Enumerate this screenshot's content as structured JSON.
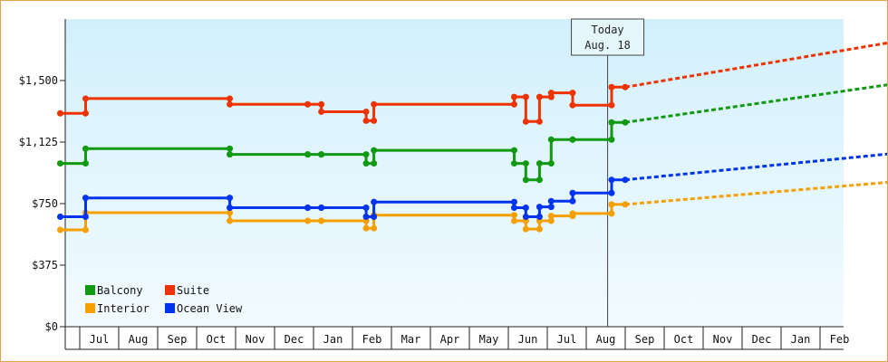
{
  "chart_data": {
    "type": "line",
    "title": "",
    "xlabel": "",
    "ylabel": "",
    "ylim": [
      0,
      1875
    ],
    "y_ticks": [
      "$0",
      "$375",
      "$750",
      "$1,125",
      "$1,500"
    ],
    "x_months": [
      "Jul",
      "Aug",
      "Sep",
      "Oct",
      "Nov",
      "Dec",
      "Jan",
      "Feb",
      "Mar",
      "Apr",
      "May",
      "Jun",
      "Jul",
      "Aug",
      "Sep",
      "Oct",
      "Nov",
      "Dec",
      "Jan",
      "Feb"
    ],
    "today": {
      "line1": "Today",
      "line2": "Aug. 18"
    },
    "legend_position": "bottom-left",
    "grid": false,
    "background_gradient": [
      "#d2f0fc",
      "#f2fbff"
    ],
    "series": [
      {
        "name": "Balcony",
        "color": "#119911",
        "points": [
          [
            -0.5,
            995
          ],
          [
            0.15,
            995
          ],
          [
            0.15,
            1085
          ],
          [
            3.85,
            1085
          ],
          [
            3.85,
            1050
          ],
          [
            5.85,
            1050
          ],
          [
            5.85,
            1050
          ],
          [
            6.2,
            1050
          ],
          [
            6.2,
            1050
          ],
          [
            7.35,
            1050
          ],
          [
            7.35,
            995
          ],
          [
            7.55,
            995
          ],
          [
            7.55,
            1075
          ],
          [
            11.15,
            1075
          ],
          [
            11.15,
            995
          ],
          [
            11.45,
            995
          ],
          [
            11.45,
            895
          ],
          [
            11.8,
            895
          ],
          [
            11.8,
            995
          ],
          [
            12.1,
            995
          ],
          [
            12.1,
            1140
          ],
          [
            12.65,
            1140
          ],
          [
            12.65,
            1140
          ],
          [
            13.65,
            1140
          ],
          [
            13.65,
            1245
          ],
          [
            14.0,
            1245
          ]
        ],
        "forecast": [
          [
            14.0,
            1245
          ],
          [
            21.5,
            1500
          ]
        ]
      },
      {
        "name": "Suite",
        "color": "#ee3300",
        "points": [
          [
            -0.5,
            1300
          ],
          [
            0.15,
            1300
          ],
          [
            0.15,
            1390
          ],
          [
            3.85,
            1390
          ],
          [
            3.85,
            1355
          ],
          [
            5.85,
            1355
          ],
          [
            5.85,
            1355
          ],
          [
            6.2,
            1355
          ],
          [
            6.2,
            1310
          ],
          [
            7.35,
            1310
          ],
          [
            7.35,
            1255
          ],
          [
            7.55,
            1255
          ],
          [
            7.55,
            1355
          ],
          [
            11.15,
            1355
          ],
          [
            11.15,
            1400
          ],
          [
            11.45,
            1400
          ],
          [
            11.45,
            1250
          ],
          [
            11.8,
            1250
          ],
          [
            11.8,
            1400
          ],
          [
            12.1,
            1400
          ],
          [
            12.1,
            1425
          ],
          [
            12.65,
            1425
          ],
          [
            12.65,
            1350
          ],
          [
            13.65,
            1350
          ],
          [
            13.65,
            1460
          ],
          [
            14.0,
            1460
          ]
        ],
        "forecast": [
          [
            14.0,
            1460
          ],
          [
            21.5,
            1760
          ]
        ]
      },
      {
        "name": "Interior",
        "color": "#f5a000",
        "points": [
          [
            -0.5,
            590
          ],
          [
            0.15,
            590
          ],
          [
            0.15,
            695
          ],
          [
            3.85,
            695
          ],
          [
            3.85,
            645
          ],
          [
            5.85,
            645
          ],
          [
            5.85,
            645
          ],
          [
            6.2,
            645
          ],
          [
            6.2,
            645
          ],
          [
            7.35,
            645
          ],
          [
            7.35,
            600
          ],
          [
            7.55,
            600
          ],
          [
            7.55,
            680
          ],
          [
            11.15,
            680
          ],
          [
            11.15,
            645
          ],
          [
            11.45,
            645
          ],
          [
            11.45,
            595
          ],
          [
            11.8,
            595
          ],
          [
            11.8,
            645
          ],
          [
            12.1,
            645
          ],
          [
            12.1,
            675
          ],
          [
            12.65,
            675
          ],
          [
            12.65,
            690
          ],
          [
            13.65,
            690
          ],
          [
            13.65,
            745
          ],
          [
            14.0,
            745
          ]
        ],
        "forecast": [
          [
            14.0,
            745
          ],
          [
            21.5,
            895
          ]
        ]
      },
      {
        "name": "Ocean View",
        "color": "#0033ee",
        "points": [
          [
            -0.5,
            670
          ],
          [
            0.15,
            670
          ],
          [
            0.15,
            785
          ],
          [
            3.85,
            785
          ],
          [
            3.85,
            725
          ],
          [
            5.85,
            725
          ],
          [
            5.85,
            725
          ],
          [
            6.2,
            725
          ],
          [
            6.2,
            725
          ],
          [
            7.35,
            725
          ],
          [
            7.35,
            670
          ],
          [
            7.55,
            670
          ],
          [
            7.55,
            760
          ],
          [
            11.15,
            760
          ],
          [
            11.15,
            725
          ],
          [
            11.45,
            725
          ],
          [
            11.45,
            670
          ],
          [
            11.8,
            670
          ],
          [
            11.8,
            730
          ],
          [
            12.1,
            730
          ],
          [
            12.1,
            765
          ],
          [
            12.65,
            765
          ],
          [
            12.65,
            815
          ],
          [
            13.65,
            815
          ],
          [
            13.65,
            895
          ],
          [
            14.0,
            895
          ]
        ],
        "forecast": [
          [
            14.0,
            895
          ],
          [
            21.5,
            1070
          ]
        ]
      }
    ]
  }
}
